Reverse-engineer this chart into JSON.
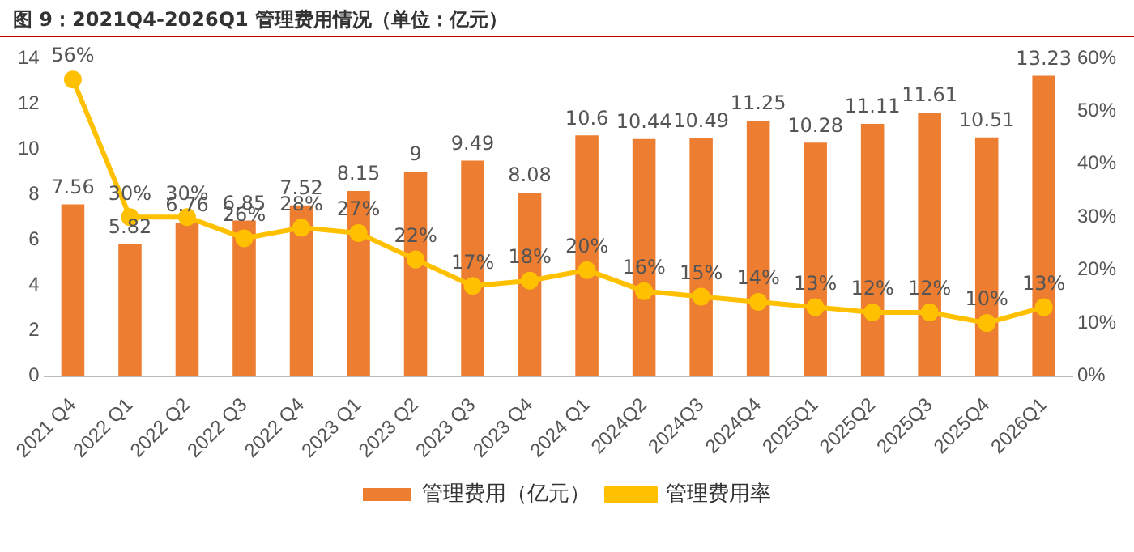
{
  "chart_data": {
    "type": "bar",
    "title": "图 9：2021Q4-2026Q1 管理费用情况（单位：亿元）",
    "categories": [
      "2021 Q4",
      "2022 Q1",
      "2022 Q2",
      "2022 Q3",
      "2022 Q4",
      "2023 Q1",
      "2023 Q2",
      "2023 Q3",
      "2023 Q4",
      "2024 Q1",
      "2024Q2",
      "2024Q3",
      "2024Q4",
      "2025Q1",
      "2025Q2",
      "2025Q3",
      "2025Q4",
      "2026Q1"
    ],
    "series": [
      {
        "name": "管理费用（亿元）",
        "color": "#ed7d31",
        "values": [
          7.56,
          5.82,
          6.76,
          6.85,
          7.52,
          8.15,
          9,
          9.49,
          8.08,
          10.6,
          10.44,
          10.49,
          11.25,
          10.28,
          11.11,
          11.61,
          10.51,
          13.23
        ],
        "value_labels": [
          "7.56",
          "5.82",
          "6.76",
          "6.85",
          "7.52",
          "8.15",
          "9",
          "9.49",
          "8.08",
          "10.6",
          "10.44",
          "10.49",
          "11.25",
          "10.28",
          "11.11",
          "11.61",
          "10.51",
          "13.23"
        ]
      },
      {
        "name": "管理费用率",
        "type": "line",
        "axis": "y2",
        "color": "#ffc000",
        "values": [
          56,
          30,
          30,
          26,
          28,
          27,
          22,
          17,
          18,
          20,
          16,
          15,
          14,
          13,
          12,
          12,
          10,
          13
        ],
        "value_labels": [
          "56%",
          "30%",
          "30%",
          "26%",
          "28%",
          "27%",
          "22%",
          "17%",
          "18%",
          "20%",
          "16%",
          "15%",
          "14%",
          "13%",
          "12%",
          "12%",
          "10%",
          "13%"
        ]
      }
    ],
    "ylim": [
      0,
      14
    ],
    "yticks": [
      0,
      2,
      4,
      6,
      8,
      10,
      12,
      14
    ],
    "y2lim": [
      0,
      60
    ],
    "y2ticks": [
      {
        "value": 0,
        "label": "0%"
      },
      {
        "value": 10,
        "label": "10%"
      },
      {
        "value": 20,
        "label": "20%"
      },
      {
        "value": 30,
        "label": "30%"
      },
      {
        "value": 40,
        "label": "40%"
      },
      {
        "value": 50,
        "label": "50%"
      },
      {
        "value": 60,
        "label": "60%"
      }
    ],
    "grid": false,
    "legend": "bottom",
    "marker": "circle",
    "line_style": "solid"
  }
}
